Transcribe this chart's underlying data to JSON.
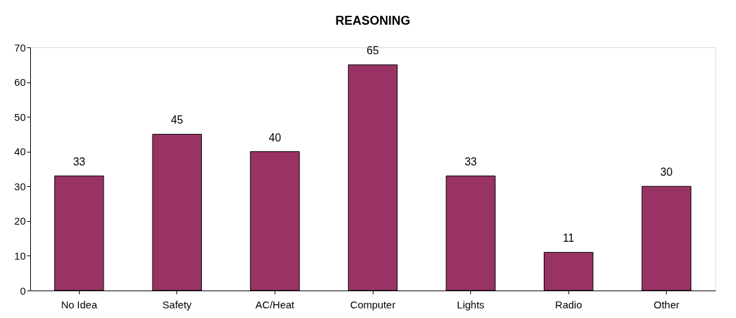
{
  "chart_data": {
    "type": "bar",
    "title": "REASONING",
    "categories": [
      "No Idea",
      "Safety",
      "AC/Heat",
      "Computer",
      "Lights",
      "Radio",
      "Other"
    ],
    "values": [
      33,
      45,
      40,
      65,
      33,
      11,
      30
    ],
    "color": "#993366",
    "ylim": [
      0,
      70
    ],
    "yticks": [
      0,
      10,
      20,
      30,
      40,
      50,
      60,
      70
    ],
    "grid": false,
    "data_labels": true
  }
}
